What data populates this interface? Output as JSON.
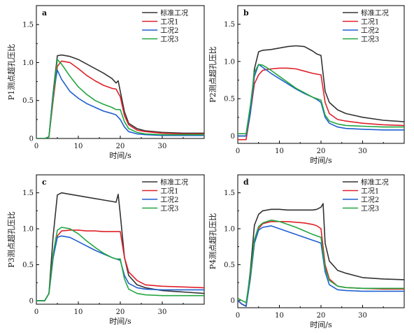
{
  "x_axis_label": "时间/s",
  "colors": {
    "标准工况": "#333333",
    "工况1": "#e0202a",
    "工况2": "#1f5fd0",
    "工况3": "#22a640"
  },
  "chart_data": [
    {
      "type": "line",
      "panel_label": "a",
      "ylabel": "P1测点超孔压比",
      "xlabel": "时间/s",
      "xlim": [
        0,
        40
      ],
      "ylim": [
        0,
        1.75
      ],
      "xticks": [
        "0",
        "10",
        "20",
        "30"
      ],
      "yticks": [
        "0",
        "0.5",
        "1.0",
        "1.5"
      ],
      "legend": [
        "标准工况",
        "工况1",
        "工况2",
        "工况3"
      ],
      "legend_position": "top-right",
      "series": [
        {
          "name": "标准工况",
          "x": [
            0,
            2,
            3,
            4,
            5,
            6,
            8,
            10,
            12,
            14,
            16,
            18,
            19,
            19.5,
            20,
            21,
            22,
            24,
            26,
            30,
            35,
            40
          ],
          "y": [
            0,
            0,
            0.02,
            0.6,
            1.09,
            1.1,
            1.08,
            1.04,
            0.98,
            0.92,
            0.86,
            0.79,
            0.73,
            0.76,
            0.62,
            0.35,
            0.2,
            0.13,
            0.1,
            0.08,
            0.07,
            0.07
          ]
        },
        {
          "name": "工况1",
          "x": [
            0,
            2,
            3,
            4,
            5,
            6,
            8,
            10,
            12,
            14,
            16,
            18,
            19,
            20,
            21,
            22,
            24,
            26,
            30,
            35,
            40
          ],
          "y": [
            0,
            0,
            0.02,
            0.5,
            0.95,
            1.02,
            1.0,
            0.92,
            0.83,
            0.76,
            0.7,
            0.66,
            0.65,
            0.55,
            0.3,
            0.18,
            0.11,
            0.09,
            0.07,
            0.06,
            0.06
          ]
        },
        {
          "name": "工况2",
          "x": [
            0,
            2,
            3,
            4,
            5,
            6,
            8,
            10,
            12,
            14,
            16,
            18,
            19,
            20,
            21,
            22,
            24,
            26,
            30,
            35,
            40
          ],
          "y": [
            0,
            0,
            0.02,
            0.6,
            0.9,
            0.78,
            0.62,
            0.53,
            0.46,
            0.41,
            0.36,
            0.33,
            0.31,
            0.25,
            0.15,
            0.09,
            0.06,
            0.05,
            0.04,
            0.04,
            0.04
          ]
        },
        {
          "name": "工况3",
          "x": [
            0,
            2,
            3,
            4,
            5,
            6,
            8,
            10,
            12,
            14,
            16,
            18,
            19,
            20,
            21,
            22,
            24,
            26,
            30,
            35,
            40
          ],
          "y": [
            0,
            0,
            0.02,
            0.55,
            1.04,
            0.98,
            0.82,
            0.68,
            0.58,
            0.5,
            0.45,
            0.41,
            0.38,
            0.38,
            0.22,
            0.13,
            0.08,
            0.06,
            0.05,
            0.05,
            0.05
          ]
        }
      ]
    },
    {
      "type": "line",
      "panel_label": "b",
      "ylabel": "P2测点超孔压比",
      "xlabel": "时间/s",
      "xlim": [
        0,
        40
      ],
      "ylim": [
        -0.1,
        1.75
      ],
      "xticks": [
        "0",
        "10",
        "20",
        "30"
      ],
      "yticks": [
        "0",
        "0.5",
        "1.0",
        "1.5"
      ],
      "legend": [
        "标准工况",
        "工况1",
        "工况2",
        "工况3"
      ],
      "legend_position": "top-right",
      "series": [
        {
          "name": "标准工况",
          "x": [
            0,
            1,
            2,
            3,
            4,
            5,
            6,
            8,
            10,
            12,
            14,
            16,
            18,
            19,
            20,
            21,
            22,
            24,
            26,
            30,
            35,
            40
          ],
          "y": [
            0,
            0,
            0,
            0.3,
            0.9,
            1.13,
            1.15,
            1.16,
            1.18,
            1.2,
            1.21,
            1.2,
            1.14,
            1.1,
            1.08,
            0.6,
            0.45,
            0.35,
            0.3,
            0.25,
            0.21,
            0.19
          ]
        },
        {
          "name": "工况1",
          "x": [
            0,
            1,
            2,
            3,
            4,
            5,
            6,
            8,
            10,
            12,
            14,
            16,
            18,
            19,
            20,
            21,
            22,
            24,
            26,
            30,
            35,
            40
          ],
          "y": [
            -0.05,
            -0.05,
            -0.05,
            0.3,
            0.7,
            0.82,
            0.88,
            0.9,
            0.91,
            0.91,
            0.9,
            0.87,
            0.84,
            0.83,
            0.82,
            0.45,
            0.3,
            0.22,
            0.2,
            0.17,
            0.15,
            0.14
          ]
        },
        {
          "name": "工况2",
          "x": [
            0,
            1,
            2,
            3,
            4,
            5,
            6,
            8,
            10,
            12,
            14,
            16,
            18,
            19,
            20,
            21,
            22,
            24,
            26,
            30,
            35,
            40
          ],
          "y": [
            0,
            0,
            0,
            0.3,
            0.8,
            0.96,
            0.92,
            0.84,
            0.77,
            0.7,
            0.63,
            0.57,
            0.52,
            0.49,
            0.45,
            0.25,
            0.17,
            0.12,
            0.1,
            0.09,
            0.08,
            0.08
          ]
        },
        {
          "name": "工况3",
          "x": [
            0,
            1,
            2,
            3,
            4,
            5,
            6,
            8,
            10,
            12,
            14,
            16,
            18,
            19,
            20,
            21,
            22,
            24,
            26,
            30,
            35,
            40
          ],
          "y": [
            0.03,
            0.03,
            0.03,
            0.4,
            0.85,
            0.96,
            0.95,
            0.88,
            0.8,
            0.72,
            0.64,
            0.58,
            0.52,
            0.5,
            0.48,
            0.28,
            0.2,
            0.16,
            0.14,
            0.13,
            0.12,
            0.12
          ]
        }
      ]
    },
    {
      "type": "line",
      "panel_label": "c",
      "ylabel": "P3测点超孔压比",
      "xlabel": "时间/s",
      "xlim": [
        0,
        40
      ],
      "ylim": [
        -0.05,
        1.75
      ],
      "xticks": [
        "0",
        "10",
        "20",
        "30"
      ],
      "yticks": [
        "0",
        "0.5",
        "1.0",
        "1.5"
      ],
      "legend": [
        "标准工况",
        "工况1",
        "工况2",
        "工况3"
      ],
      "legend_position": "top-right",
      "series": [
        {
          "name": "标准工况",
          "x": [
            0,
            2,
            3,
            4,
            5,
            6,
            8,
            10,
            12,
            14,
            16,
            18,
            19,
            19.5,
            20,
            21,
            22,
            24,
            26,
            30,
            35,
            40
          ],
          "y": [
            0,
            0,
            0.1,
            0.9,
            1.47,
            1.5,
            1.48,
            1.46,
            1.44,
            1.42,
            1.4,
            1.38,
            1.37,
            1.48,
            1.2,
            0.6,
            0.35,
            0.22,
            0.18,
            0.14,
            0.12,
            0.1
          ]
        },
        {
          "name": "工况1",
          "x": [
            0,
            2,
            3,
            4,
            5,
            6,
            8,
            10,
            12,
            14,
            16,
            18,
            19,
            20,
            21,
            22,
            24,
            26,
            30,
            35,
            40
          ],
          "y": [
            0,
            0,
            0.1,
            0.6,
            0.9,
            0.97,
            0.98,
            0.98,
            0.97,
            0.97,
            0.96,
            0.96,
            0.96,
            0.96,
            0.6,
            0.4,
            0.28,
            0.22,
            0.2,
            0.19,
            0.18
          ]
        },
        {
          "name": "工况2",
          "x": [
            0,
            2,
            3,
            4,
            5,
            6,
            8,
            10,
            12,
            14,
            16,
            18,
            19,
            20,
            21,
            22,
            24,
            26,
            30,
            35,
            40
          ],
          "y": [
            0,
            0,
            0.1,
            0.6,
            0.88,
            0.9,
            0.88,
            0.82,
            0.76,
            0.7,
            0.65,
            0.6,
            0.58,
            0.56,
            0.35,
            0.24,
            0.18,
            0.16,
            0.15,
            0.15,
            0.15
          ]
        },
        {
          "name": "工况3",
          "x": [
            0,
            2,
            3,
            4,
            5,
            6,
            8,
            10,
            12,
            14,
            16,
            18,
            19,
            20,
            21,
            22,
            24,
            26,
            30,
            35,
            40
          ],
          "y": [
            0,
            0,
            0.1,
            0.65,
            0.98,
            1.02,
            1.0,
            0.93,
            0.83,
            0.74,
            0.66,
            0.6,
            0.58,
            0.58,
            0.3,
            0.16,
            0.1,
            0.08,
            0.07,
            0.07,
            0.07
          ]
        }
      ]
    },
    {
      "type": "line",
      "panel_label": "d",
      "ylabel": "P4测点超孔压比",
      "xlabel": "时间/s",
      "xlim": [
        0,
        40
      ],
      "ylim": [
        -0.1,
        1.75
      ],
      "xticks": [
        "0",
        "10",
        "20",
        "30"
      ],
      "yticks": [
        "0",
        "0.5",
        "1.0",
        "1.5"
      ],
      "legend": [
        "标准工况",
        "工况1",
        "工况2",
        "工况3"
      ],
      "legend_position": "top-right",
      "series": [
        {
          "name": "标准工况",
          "x": [
            0,
            1,
            2,
            3,
            4,
            5,
            6,
            8,
            10,
            12,
            14,
            16,
            18,
            19,
            20,
            20.5,
            21,
            22,
            24,
            26,
            30,
            35,
            40
          ],
          "y": [
            0,
            -0.05,
            -0.08,
            0.4,
            1.05,
            1.2,
            1.25,
            1.27,
            1.27,
            1.26,
            1.26,
            1.26,
            1.26,
            1.27,
            1.3,
            1.35,
            0.8,
            0.55,
            0.42,
            0.38,
            0.32,
            0.3,
            0.29
          ]
        },
        {
          "name": "工况1",
          "x": [
            0,
            1,
            2,
            3,
            4,
            5,
            6,
            8,
            10,
            12,
            14,
            16,
            18,
            19,
            20,
            21,
            22,
            24,
            26,
            30,
            35,
            40
          ],
          "y": [
            0,
            -0.05,
            -0.08,
            0.3,
            0.8,
            1.0,
            1.07,
            1.1,
            1.1,
            1.1,
            1.09,
            1.08,
            1.06,
            1.04,
            1.0,
            0.5,
            0.3,
            0.2,
            0.18,
            0.17,
            0.16,
            0.16
          ]
        },
        {
          "name": "工况2",
          "x": [
            0,
            1,
            2,
            3,
            4,
            5,
            6,
            8,
            10,
            12,
            14,
            16,
            18,
            19,
            20,
            21,
            22,
            24,
            26,
            30,
            35,
            40
          ],
          "y": [
            0,
            -0.05,
            -0.08,
            0.3,
            0.8,
            0.98,
            1.02,
            1.04,
            1.0,
            0.96,
            0.92,
            0.88,
            0.84,
            0.82,
            0.8,
            0.4,
            0.22,
            0.15,
            0.14,
            0.13,
            0.13,
            0.13
          ]
        },
        {
          "name": "工况3",
          "x": [
            0,
            1,
            2,
            3,
            4,
            5,
            6,
            8,
            10,
            12,
            14,
            16,
            18,
            19,
            20,
            21,
            22,
            24,
            26,
            30,
            35,
            40
          ],
          "y": [
            0.03,
            0,
            -0.03,
            0.35,
            0.85,
            1.03,
            1.08,
            1.12,
            1.1,
            1.06,
            1.02,
            0.97,
            0.92,
            0.9,
            0.88,
            0.45,
            0.28,
            0.2,
            0.18,
            0.17,
            0.17,
            0.17
          ]
        }
      ]
    }
  ]
}
